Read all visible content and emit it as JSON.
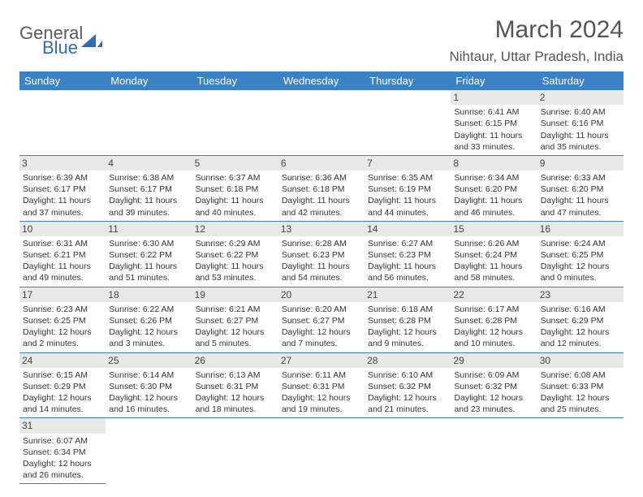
{
  "logo": {
    "text_general": "General",
    "text_blue": "Blue"
  },
  "title": "March 2024",
  "subtitle": "Nihtaur, Uttar Pradesh, India",
  "colors": {
    "header_bg": "#3b82c4",
    "header_text": "#ffffff",
    "border": "#3b82c4",
    "daynum_bg": "#e8e8e8",
    "text": "#333333",
    "title_color": "#555555"
  },
  "day_headers": [
    "Sunday",
    "Monday",
    "Tuesday",
    "Wednesday",
    "Thursday",
    "Friday",
    "Saturday"
  ],
  "weeks": [
    [
      null,
      null,
      null,
      null,
      null,
      {
        "n": "1",
        "sr": "Sunrise: 6:41 AM",
        "ss": "Sunset: 6:15 PM",
        "dl1": "Daylight: 11 hours",
        "dl2": "and 33 minutes."
      },
      {
        "n": "2",
        "sr": "Sunrise: 6:40 AM",
        "ss": "Sunset: 6:16 PM",
        "dl1": "Daylight: 11 hours",
        "dl2": "and 35 minutes."
      }
    ],
    [
      {
        "n": "3",
        "sr": "Sunrise: 6:39 AM",
        "ss": "Sunset: 6:17 PM",
        "dl1": "Daylight: 11 hours",
        "dl2": "and 37 minutes."
      },
      {
        "n": "4",
        "sr": "Sunrise: 6:38 AM",
        "ss": "Sunset: 6:17 PM",
        "dl1": "Daylight: 11 hours",
        "dl2": "and 39 minutes."
      },
      {
        "n": "5",
        "sr": "Sunrise: 6:37 AM",
        "ss": "Sunset: 6:18 PM",
        "dl1": "Daylight: 11 hours",
        "dl2": "and 40 minutes."
      },
      {
        "n": "6",
        "sr": "Sunrise: 6:36 AM",
        "ss": "Sunset: 6:18 PM",
        "dl1": "Daylight: 11 hours",
        "dl2": "and 42 minutes."
      },
      {
        "n": "7",
        "sr": "Sunrise: 6:35 AM",
        "ss": "Sunset: 6:19 PM",
        "dl1": "Daylight: 11 hours",
        "dl2": "and 44 minutes."
      },
      {
        "n": "8",
        "sr": "Sunrise: 6:34 AM",
        "ss": "Sunset: 6:20 PM",
        "dl1": "Daylight: 11 hours",
        "dl2": "and 46 minutes."
      },
      {
        "n": "9",
        "sr": "Sunrise: 6:33 AM",
        "ss": "Sunset: 6:20 PM",
        "dl1": "Daylight: 11 hours",
        "dl2": "and 47 minutes."
      }
    ],
    [
      {
        "n": "10",
        "sr": "Sunrise: 6:31 AM",
        "ss": "Sunset: 6:21 PM",
        "dl1": "Daylight: 11 hours",
        "dl2": "and 49 minutes."
      },
      {
        "n": "11",
        "sr": "Sunrise: 6:30 AM",
        "ss": "Sunset: 6:22 PM",
        "dl1": "Daylight: 11 hours",
        "dl2": "and 51 minutes."
      },
      {
        "n": "12",
        "sr": "Sunrise: 6:29 AM",
        "ss": "Sunset: 6:22 PM",
        "dl1": "Daylight: 11 hours",
        "dl2": "and 53 minutes."
      },
      {
        "n": "13",
        "sr": "Sunrise: 6:28 AM",
        "ss": "Sunset: 6:23 PM",
        "dl1": "Daylight: 11 hours",
        "dl2": "and 54 minutes."
      },
      {
        "n": "14",
        "sr": "Sunrise: 6:27 AM",
        "ss": "Sunset: 6:23 PM",
        "dl1": "Daylight: 11 hours",
        "dl2": "and 56 minutes."
      },
      {
        "n": "15",
        "sr": "Sunrise: 6:26 AM",
        "ss": "Sunset: 6:24 PM",
        "dl1": "Daylight: 11 hours",
        "dl2": "and 58 minutes."
      },
      {
        "n": "16",
        "sr": "Sunrise: 6:24 AM",
        "ss": "Sunset: 6:25 PM",
        "dl1": "Daylight: 12 hours",
        "dl2": "and 0 minutes."
      }
    ],
    [
      {
        "n": "17",
        "sr": "Sunrise: 6:23 AM",
        "ss": "Sunset: 6:25 PM",
        "dl1": "Daylight: 12 hours",
        "dl2": "and 2 minutes."
      },
      {
        "n": "18",
        "sr": "Sunrise: 6:22 AM",
        "ss": "Sunset: 6:26 PM",
        "dl1": "Daylight: 12 hours",
        "dl2": "and 3 minutes."
      },
      {
        "n": "19",
        "sr": "Sunrise: 6:21 AM",
        "ss": "Sunset: 6:27 PM",
        "dl1": "Daylight: 12 hours",
        "dl2": "and 5 minutes."
      },
      {
        "n": "20",
        "sr": "Sunrise: 6:20 AM",
        "ss": "Sunset: 6:27 PM",
        "dl1": "Daylight: 12 hours",
        "dl2": "and 7 minutes."
      },
      {
        "n": "21",
        "sr": "Sunrise: 6:18 AM",
        "ss": "Sunset: 6:28 PM",
        "dl1": "Daylight: 12 hours",
        "dl2": "and 9 minutes."
      },
      {
        "n": "22",
        "sr": "Sunrise: 6:17 AM",
        "ss": "Sunset: 6:28 PM",
        "dl1": "Daylight: 12 hours",
        "dl2": "and 10 minutes."
      },
      {
        "n": "23",
        "sr": "Sunrise: 6:16 AM",
        "ss": "Sunset: 6:29 PM",
        "dl1": "Daylight: 12 hours",
        "dl2": "and 12 minutes."
      }
    ],
    [
      {
        "n": "24",
        "sr": "Sunrise: 6:15 AM",
        "ss": "Sunset: 6:29 PM",
        "dl1": "Daylight: 12 hours",
        "dl2": "and 14 minutes."
      },
      {
        "n": "25",
        "sr": "Sunrise: 6:14 AM",
        "ss": "Sunset: 6:30 PM",
        "dl1": "Daylight: 12 hours",
        "dl2": "and 16 minutes."
      },
      {
        "n": "26",
        "sr": "Sunrise: 6:13 AM",
        "ss": "Sunset: 6:31 PM",
        "dl1": "Daylight: 12 hours",
        "dl2": "and 18 minutes."
      },
      {
        "n": "27",
        "sr": "Sunrise: 6:11 AM",
        "ss": "Sunset: 6:31 PM",
        "dl1": "Daylight: 12 hours",
        "dl2": "and 19 minutes."
      },
      {
        "n": "28",
        "sr": "Sunrise: 6:10 AM",
        "ss": "Sunset: 6:32 PM",
        "dl1": "Daylight: 12 hours",
        "dl2": "and 21 minutes."
      },
      {
        "n": "29",
        "sr": "Sunrise: 6:09 AM",
        "ss": "Sunset: 6:32 PM",
        "dl1": "Daylight: 12 hours",
        "dl2": "and 23 minutes."
      },
      {
        "n": "30",
        "sr": "Sunrise: 6:08 AM",
        "ss": "Sunset: 6:33 PM",
        "dl1": "Daylight: 12 hours",
        "dl2": "and 25 minutes."
      }
    ],
    [
      {
        "n": "31",
        "sr": "Sunrise: 6:07 AM",
        "ss": "Sunset: 6:34 PM",
        "dl1": "Daylight: 12 hours",
        "dl2": "and 26 minutes."
      },
      null,
      null,
      null,
      null,
      null,
      null
    ]
  ]
}
